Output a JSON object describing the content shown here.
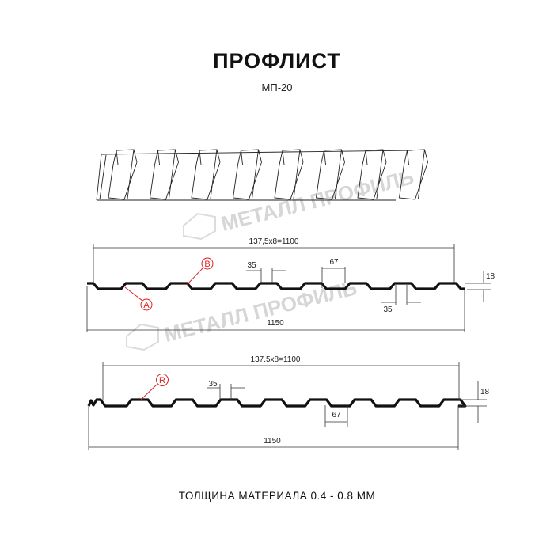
{
  "header": {
    "title": "ПРОФЛИСТ",
    "subtitle": "МП-20"
  },
  "watermark": "МЕТАЛЛ ПРОФИЛЬ",
  "profile_a": {
    "pitch_label": "137,5x8=1100",
    "width_label": "1150",
    "rib_top_label": "35",
    "rib_bottom_label": "35",
    "rib_gap_label": "67",
    "height_label": "18",
    "marker_a": "A",
    "marker_b": "B"
  },
  "profile_b": {
    "pitch_label": "137.5x8=1100",
    "width_label": "1150",
    "rib_top_label": "35",
    "rib_gap_label": "67",
    "height_label": "18",
    "marker_r": "R"
  },
  "footer": {
    "thickness": "ТОЛЩИНА МАТЕРИАЛА 0.4 - 0.8 ММ"
  },
  "colors": {
    "profile": "#111111",
    "marker": "#e02020",
    "watermark": "#d6d6d6"
  }
}
